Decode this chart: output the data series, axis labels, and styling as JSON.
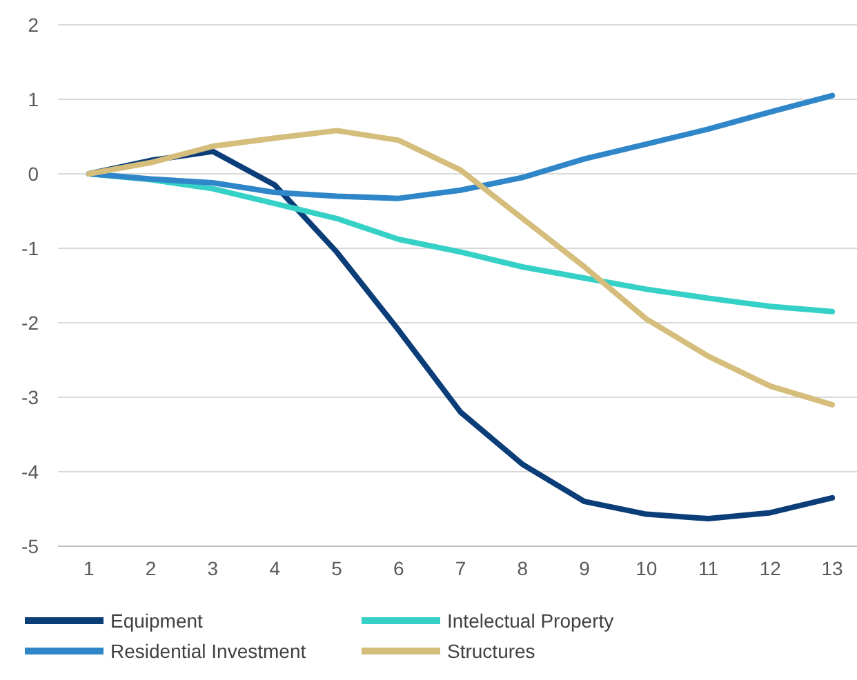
{
  "chart_data": {
    "type": "line",
    "x": [
      1,
      2,
      3,
      4,
      5,
      6,
      7,
      8,
      9,
      10,
      11,
      12,
      13
    ],
    "xlim": [
      0.5,
      13.4
    ],
    "xticks": [
      1,
      2,
      3,
      4,
      5,
      6,
      7,
      8,
      9,
      10,
      11,
      12,
      13
    ],
    "series": [
      {
        "name": "Equipment",
        "color": "#0b3d78",
        "values": [
          0,
          0.18,
          0.3,
          -0.15,
          -1.05,
          -2.1,
          -3.2,
          -3.9,
          -4.4,
          -4.57,
          -4.63,
          -4.55,
          -4.35
        ]
      },
      {
        "name": "Intelectual Property",
        "color": "#35d0c6",
        "values": [
          0,
          -0.08,
          -0.2,
          -0.4,
          -0.6,
          -0.88,
          -1.05,
          -1.25,
          -1.4,
          -1.55,
          -1.67,
          -1.78,
          -1.85
        ]
      },
      {
        "name": "Residential Investment",
        "color": "#2f86c9",
        "values": [
          0,
          -0.07,
          -0.12,
          -0.25,
          -0.3,
          -0.33,
          -0.22,
          -0.05,
          0.2,
          0.4,
          0.6,
          0.83,
          1.05
        ]
      },
      {
        "name": "Structures",
        "color": "#d5bd7b",
        "values": [
          0,
          0.15,
          0.37,
          0.48,
          0.58,
          0.45,
          0.05,
          -0.6,
          -1.25,
          -1.95,
          -2.45,
          -2.85,
          -3.1
        ]
      }
    ],
    "ylim": [
      -5,
      2
    ],
    "yticks": [
      -5,
      -4,
      -3,
      -2,
      -1,
      0,
      1,
      2
    ],
    "grid": "y",
    "legend": "bottom",
    "marker": "none",
    "line_style": "solid"
  }
}
